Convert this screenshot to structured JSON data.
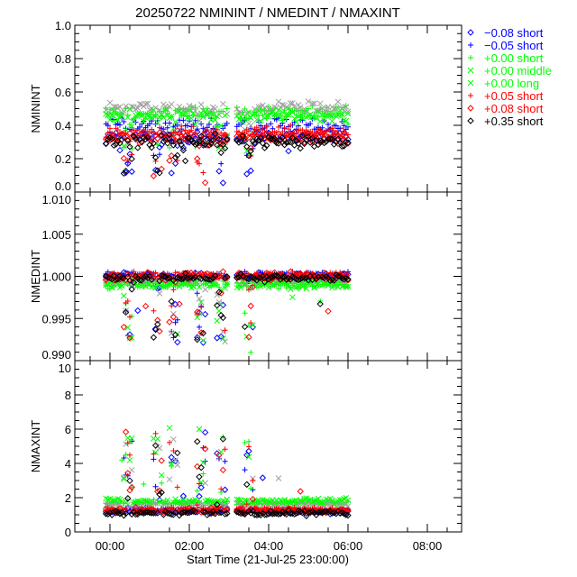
{
  "chart_data": {
    "type": "scatter",
    "title": "20250722 NMININT / NMEDINT / NMAXINT",
    "xlabel": "Start Time (21-Jul-25 23:00:00)",
    "x_units": "hours since 21-Jul-25 23:00:00",
    "xlim": [
      -0.886,
      8.864
    ],
    "x_ticks": [
      0,
      2,
      4,
      6,
      8
    ],
    "x_tick_labels": [
      "00:00",
      "02:00",
      "04:00",
      "06:00",
      "08:00"
    ],
    "data_time_range": [
      -0.1,
      6.0
    ],
    "data_gap": [
      2.95,
      3.15
    ],
    "dip_times": [
      0.45,
      1.2,
      1.6,
      2.3,
      2.8,
      3.5
    ],
    "series": [
      {
        "name": "-0.08 short",
        "label_value": "−0.08",
        "label_type": "short",
        "marker": "diamond",
        "color": "#0000ff",
        "plot_color": "#0000ff",
        "levels": {
          "NMININT": 0.33,
          "NMEDINT": 1.0,
          "NMAXINT": 1.2
        }
      },
      {
        "name": "-0.05 short",
        "label_value": "−0.05",
        "label_type": "short",
        "marker": "plus",
        "color": "#0000ff",
        "plot_color": "#0000ff",
        "levels": {
          "NMININT": 0.4,
          "NMEDINT": 1.0002,
          "NMAXINT": 1.25
        }
      },
      {
        "name": "+0.00 short",
        "label_value": "+0.00",
        "label_type": "short",
        "marker": "plus",
        "color": "#00ff00",
        "plot_color": "#00ff00",
        "levels": {
          "NMININT": 0.48,
          "NMEDINT": 0.999,
          "NMAXINT": 1.7
        }
      },
      {
        "name": "+0.00 middle",
        "label_value": "+0.00",
        "label_type": "middle",
        "marker": "x",
        "color": "#00ff00",
        "plot_color": "#a0a0a0",
        "levels": {
          "NMININT": 0.5,
          "NMEDINT": 0.9995,
          "NMAXINT": 1.6
        }
      },
      {
        "name": "+0.00 long",
        "label_value": "+0.00",
        "label_type": "long",
        "marker": "x",
        "color": "#00ff00",
        "plot_color": "#00ff00",
        "levels": {
          "NMININT": 0.46,
          "NMEDINT": 0.999,
          "NMAXINT": 1.8
        }
      },
      {
        "name": "+0.05 short",
        "label_value": "+0.05",
        "label_type": "short",
        "marker": "plus",
        "color": "#ff0000",
        "plot_color": "#ff0000",
        "levels": {
          "NMININT": 0.36,
          "NMEDINT": 1.0001,
          "NMAXINT": 1.3
        }
      },
      {
        "name": "+0.08 short",
        "label_value": "+0.08",
        "label_type": "short",
        "marker": "diamond",
        "color": "#ff0000",
        "plot_color": "#ff0000",
        "levels": {
          "NMININT": 0.33,
          "NMEDINT": 1.0,
          "NMAXINT": 1.25
        }
      },
      {
        "name": "+0.35 short",
        "label_value": "+0.35",
        "label_type": "short",
        "marker": "diamond",
        "color": "#000000",
        "plot_color": "#000000",
        "levels": {
          "NMININT": 0.3,
          "NMEDINT": 0.9998,
          "NMAXINT": 1.1
        }
      }
    ],
    "panels": [
      {
        "ylabel": "NMININT",
        "ylim": [
          0.0,
          1.0
        ],
        "y_ticks": [
          0.0,
          0.2,
          0.4,
          0.6,
          0.8,
          1.0
        ],
        "y_tick_labels": [
          "0.0",
          "0.2",
          "0.4",
          "0.6",
          "0.8",
          "1.0"
        ],
        "minor": 4,
        "noise": 0.03,
        "dip_amp": -0.25
      },
      {
        "ylabel": "NMEDINT",
        "ylim": [
          0.99,
          1.01
        ],
        "y_ticks": [
          0.99,
          0.995,
          1.0,
          1.005,
          1.01
        ],
        "y_tick_labels": [
          "0.990",
          "0.995",
          "1.000",
          "1.005",
          "1.010"
        ],
        "minor": 5,
        "noise": 0.0003,
        "dip_amp": -0.008
      },
      {
        "ylabel": "NMAXINT",
        "ylim": [
          0,
          10
        ],
        "y_ticks": [
          0,
          2,
          4,
          6,
          8,
          10
        ],
        "y_tick_labels": [
          "0",
          "2",
          "4",
          "6",
          "8",
          "10"
        ],
        "minor": 4,
        "noise": 0.1,
        "dip_amp": 4.5
      }
    ],
    "legend_position": "right-top",
    "grid": false
  }
}
